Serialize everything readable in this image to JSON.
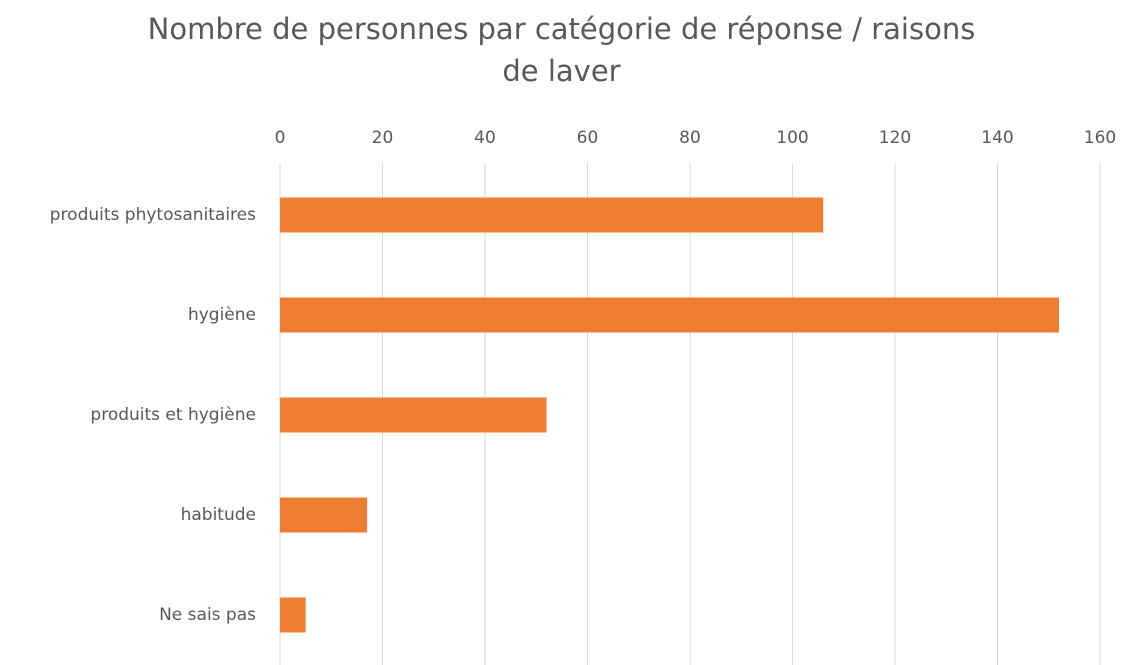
{
  "chart_data": {
    "type": "bar",
    "orientation": "horizontal",
    "title": "Nombre de personnes par catégorie de réponse / raisons de laver",
    "categories": [
      "produits phytosanitaires",
      "hygiène",
      "produits et hygiène",
      "habitude",
      "Ne sais pas"
    ],
    "values": [
      106,
      152,
      52,
      17,
      5
    ],
    "color": "#ed7d31",
    "xlim": [
      0,
      160
    ],
    "xticks": [
      0,
      20,
      40,
      60,
      80,
      100,
      120,
      140,
      160
    ],
    "grid": true
  }
}
